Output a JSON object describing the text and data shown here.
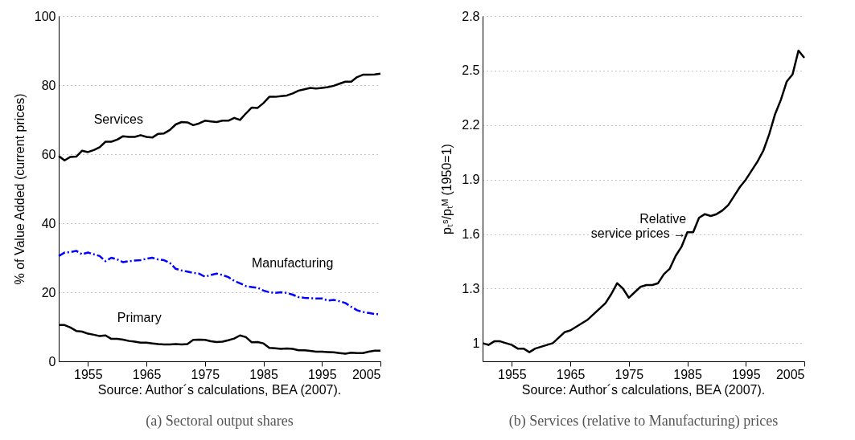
{
  "chart_data": [
    {
      "type": "line",
      "ylabel": "% of Value Added (current prices)",
      "xlim": [
        1950,
        2005
      ],
      "xticks": [
        1955,
        1965,
        1975,
        1985,
        1995,
        2005
      ],
      "ylim": [
        0,
        100
      ],
      "yticks": [
        0,
        20,
        40,
        60,
        80,
        100
      ],
      "grid": "y",
      "legend": false,
      "x": [
        1950,
        1951,
        1952,
        1953,
        1954,
        1955,
        1956,
        1957,
        1958,
        1959,
        1960,
        1961,
        1962,
        1963,
        1964,
        1965,
        1966,
        1967,
        1968,
        1969,
        1970,
        1971,
        1972,
        1973,
        1974,
        1975,
        1976,
        1977,
        1978,
        1979,
        1980,
        1981,
        1982,
        1983,
        1984,
        1985,
        1986,
        1987,
        1988,
        1989,
        1990,
        1991,
        1992,
        1993,
        1994,
        1995,
        1996,
        1997,
        1998,
        1999,
        2000,
        2001,
        2002,
        2003,
        2004,
        2005
      ],
      "series": [
        {
          "name": "Services",
          "color": "#000000",
          "values": [
            59.5,
            58.2,
            59.2,
            59.3,
            61,
            60.6,
            61.2,
            62,
            63.6,
            63.6,
            64.2,
            65.2,
            65,
            65,
            65.5,
            65,
            64.8,
            65.9,
            66,
            67,
            68.6,
            69.3,
            69.2,
            68.4,
            68.9,
            69.7,
            69.5,
            69.3,
            69.7,
            69.7,
            70.5,
            69.9,
            71.8,
            73.5,
            73.4,
            74.8,
            76.6,
            76.6,
            76.8,
            77,
            77.6,
            78.4,
            78.8,
            79.2,
            79,
            79.2,
            79.4,
            79.8,
            80.4,
            81,
            81,
            82.3,
            83,
            83,
            83.1,
            83.3
          ]
        },
        {
          "name": "Manufacturing",
          "color": "#0000ff",
          "line_style": "dashed",
          "values": [
            30.5,
            31.5,
            31.6,
            32,
            31,
            31.5,
            31,
            30.5,
            29,
            30,
            29.5,
            28.7,
            29,
            29.2,
            29.3,
            29.7,
            30,
            29.5,
            29.3,
            28.5,
            26.8,
            26.3,
            26,
            25.6,
            25.4,
            24.5,
            25,
            25.4,
            25,
            24.4,
            23.3,
            22.6,
            21.8,
            21.5,
            21.3,
            20.5,
            20,
            19.8,
            20,
            19.8,
            19.3,
            18.6,
            18.4,
            18.3,
            18.2,
            18.2,
            17.6,
            17.8,
            17.4,
            16.9,
            15.8,
            14.8,
            14.3,
            14,
            13.7,
            13.6
          ]
        },
        {
          "name": "Primary",
          "color": "#000000",
          "values": [
            10.5,
            10.5,
            9.8,
            8.8,
            8.6,
            8,
            7.7,
            7.3,
            7.5,
            6.5,
            6.5,
            6.3,
            5.9,
            5.7,
            5.4,
            5.4,
            5.2,
            5,
            4.9,
            4.9,
            5,
            4.9,
            5,
            6.2,
            6.3,
            6.2,
            5.8,
            5.6,
            5.7,
            6.1,
            6.6,
            7.5,
            7,
            5.5,
            5.6,
            5.2,
            3.9,
            3.8,
            3.6,
            3.7,
            3.6,
            3.2,
            3.2,
            3,
            2.8,
            2.8,
            2.7,
            2.6,
            2.4,
            2.2,
            2.5,
            2.4,
            2.4,
            2.8,
            3.1,
            3.1
          ]
        }
      ],
      "annotations": [
        "Source: Author´s calculations, BEA (2007).",
        "(a) Sectoral output shares"
      ]
    },
    {
      "type": "line",
      "ylabel": "pₜˢ/pₜᴹ (1950=1)",
      "xlim": [
        1950,
        2005
      ],
      "xticks": [
        1955,
        1965,
        1975,
        1985,
        1995,
        2005
      ],
      "ylim": [
        0.9,
        2.8
      ],
      "yticks": [
        {
          "value": 1,
          "label": "1"
        },
        1.3,
        1.6,
        1.9,
        2.2,
        2.5,
        2.8
      ],
      "grid": "y",
      "legend": false,
      "x": [
        1950,
        1951,
        1952,
        1953,
        1954,
        1955,
        1956,
        1957,
        1958,
        1959,
        1960,
        1961,
        1962,
        1963,
        1964,
        1965,
        1966,
        1967,
        1968,
        1969,
        1970,
        1971,
        1972,
        1973,
        1974,
        1975,
        1976,
        1977,
        1978,
        1979,
        1980,
        1981,
        1982,
        1983,
        1984,
        1985,
        1986,
        1987,
        1988,
        1989,
        1990,
        1991,
        1992,
        1993,
        1994,
        1995,
        1996,
        1997,
        1998,
        1999,
        2000,
        2001,
        2002,
        2003,
        2004,
        2005
      ],
      "series": [
        {
          "color": "#000000",
          "values": [
            1.0,
            0.99,
            1.01,
            1.01,
            1.0,
            0.99,
            0.97,
            0.97,
            0.95,
            0.97,
            0.98,
            0.99,
            1.0,
            1.03,
            1.06,
            1.07,
            1.09,
            1.11,
            1.13,
            1.16,
            1.19,
            1.22,
            1.27,
            1.33,
            1.3,
            1.25,
            1.28,
            1.31,
            1.32,
            1.32,
            1.33,
            1.38,
            1.41,
            1.48,
            1.53,
            1.61,
            1.61,
            1.69,
            1.71,
            1.7,
            1.71,
            1.73,
            1.76,
            1.81,
            1.86,
            1.9,
            1.95,
            2.0,
            2.06,
            2.15,
            2.26,
            2.34,
            2.44,
            2.48,
            2.61,
            2.57
          ]
        }
      ],
      "annotations": [
        {
          "text": "Relative\nservice prices →",
          "x": 1987,
          "y": 1.69
        },
        "Source: Author´s calculations, BEA (2007).",
        "(b) Services (relative to Manufacturing) prices"
      ]
    }
  ]
}
